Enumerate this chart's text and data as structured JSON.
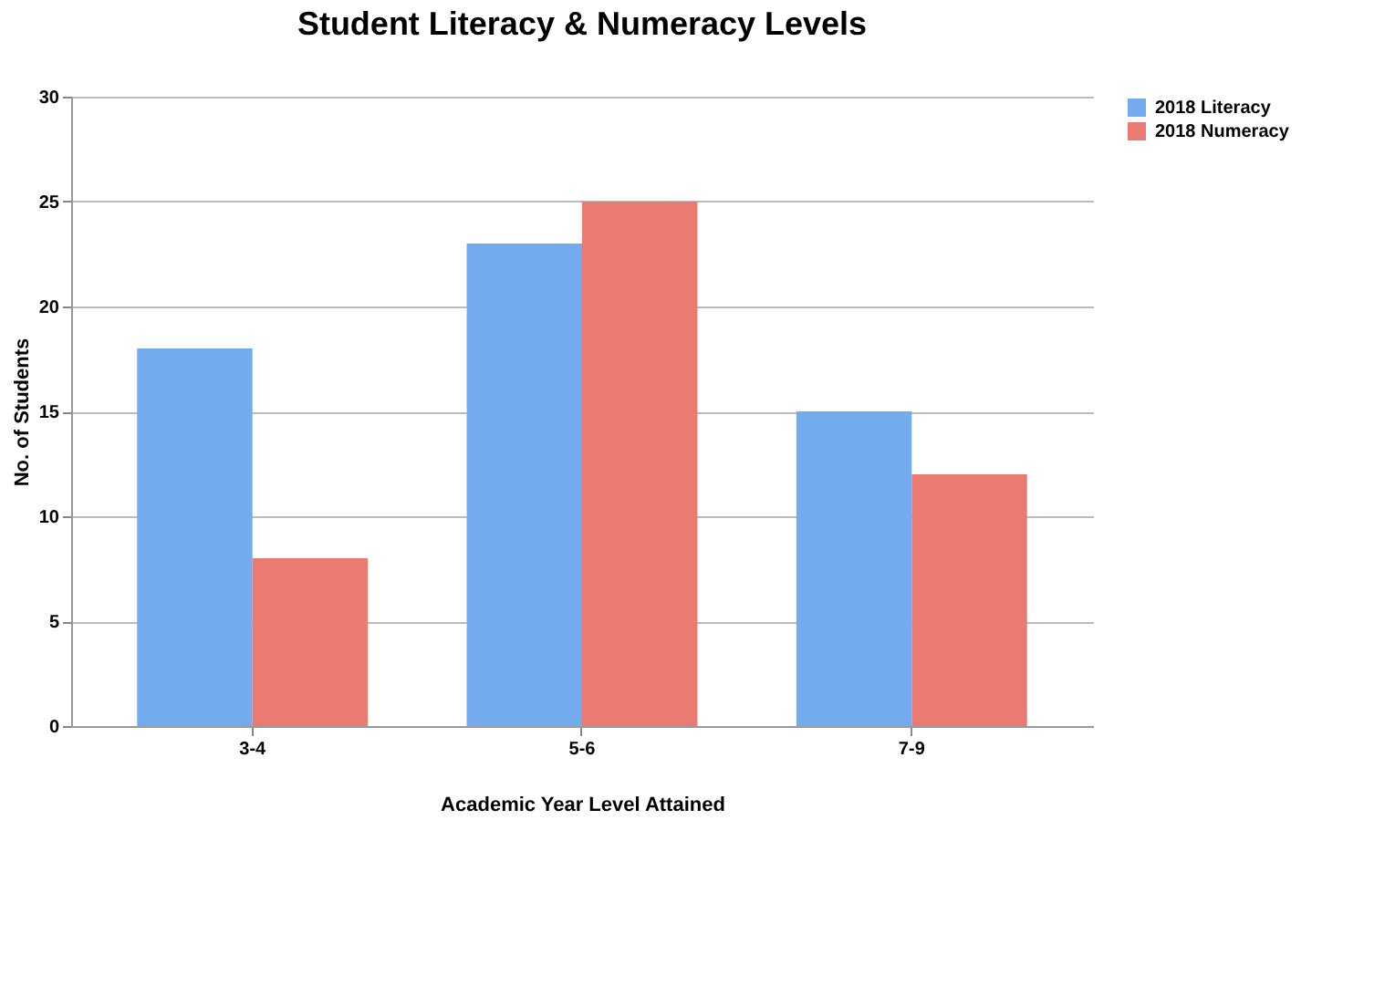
{
  "chart_data": {
    "type": "bar",
    "title": "Student Literacy & Numeracy Levels",
    "xlabel": "Academic Year Level Attained",
    "ylabel": "No. of Students",
    "categories": [
      "3-4",
      "5-6",
      "7-9"
    ],
    "series": [
      {
        "name": "2018 Literacy",
        "color": "#74aaee",
        "values": [
          18,
          23,
          15
        ]
      },
      {
        "name": "2018 Numeracy",
        "color": "#ea7a72",
        "values": [
          8,
          25,
          12
        ]
      }
    ],
    "ylim": [
      0,
      30
    ],
    "yticks": [
      0,
      5,
      10,
      15,
      20,
      25,
      30
    ],
    "grid": "y",
    "legend": "right"
  }
}
